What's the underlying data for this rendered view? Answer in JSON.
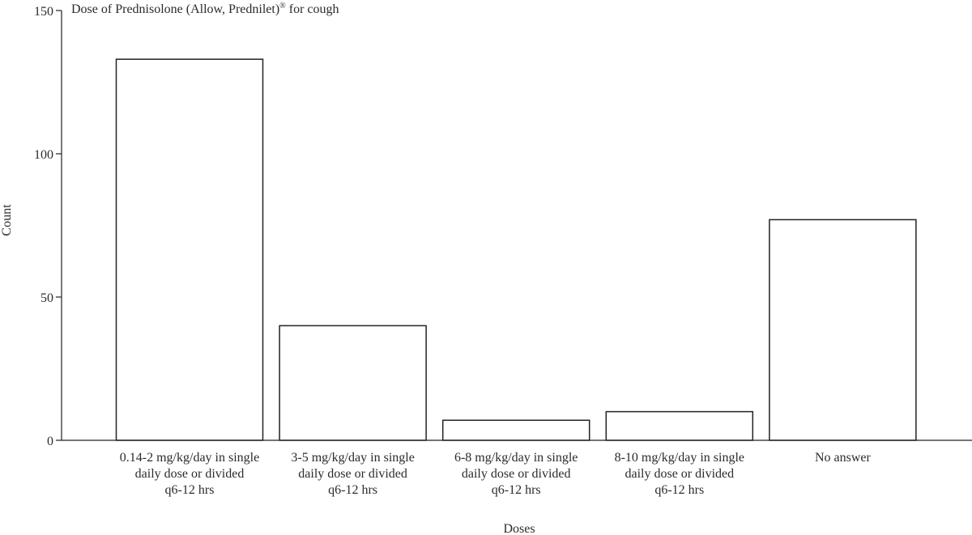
{
  "chart_data": {
    "type": "bar",
    "title_parts": [
      "Dose of Prednisolone (Allow, Prednilet)",
      "®",
      " for cough"
    ],
    "xlabel": "Doses",
    "ylabel": "Count",
    "ylim": [
      0,
      150
    ],
    "yticks": [
      0,
      50,
      100,
      150
    ],
    "grid": false,
    "categories": [
      [
        "0.14-2 mg/kg/day in single",
        "daily dose or divided",
        "q6-12 hrs"
      ],
      [
        "3-5 mg/kg/day in single",
        "daily dose or divided",
        "q6-12 hrs"
      ],
      [
        "6-8 mg/kg/day in single",
        "daily dose or divided",
        "q6-12 hrs"
      ],
      [
        "8-10 mg/kg/day in single",
        "daily dose or divided",
        "q6-12 hrs"
      ],
      [
        "No answer"
      ]
    ],
    "values": [
      133,
      40,
      7,
      10,
      77
    ],
    "colors": {
      "bar_fill": "#ffffff",
      "bar_stroke": "#222222",
      "axis": "#222222"
    }
  }
}
